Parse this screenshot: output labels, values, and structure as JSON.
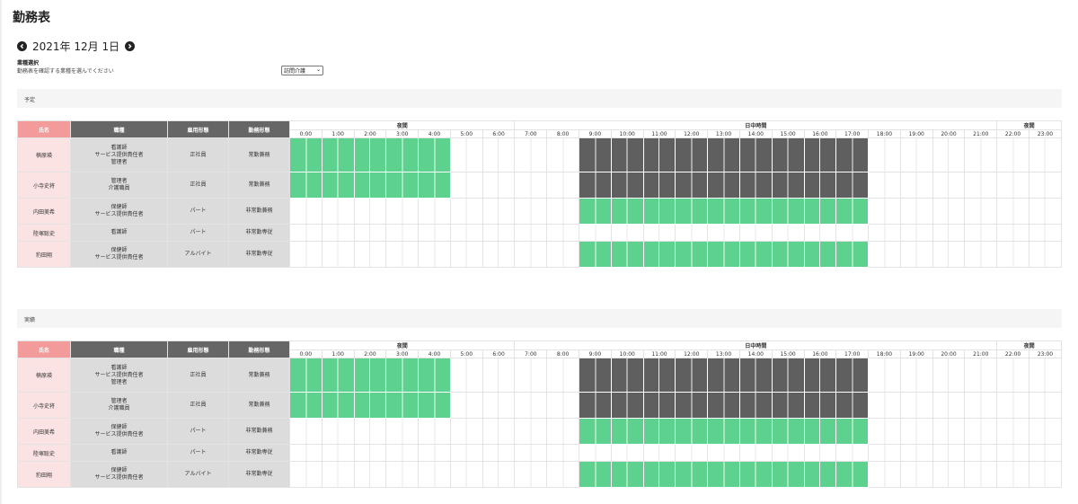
{
  "page": {
    "title": "勤務表"
  },
  "date_nav": {
    "date": "2021年 12月 1日",
    "prev_icon": "chevron-left-circle-icon",
    "next_icon": "chevron-right-circle-icon"
  },
  "job_select": {
    "title": "業種選択",
    "description": "勤務表を確認する業種を選んでください",
    "selected": "訪問介護"
  },
  "colors": {
    "name_header": "#f39a9a",
    "name_cell": "#fbe3e3",
    "dark_header": "#666666",
    "info_cell": "#dcdcdc",
    "scheduled_green": "#5dd28e",
    "scheduled_dark": "#5f5f5f"
  },
  "table_headers": {
    "name": "氏名",
    "job": "職種",
    "employment": "雇用形態",
    "work_style": "勤務形態"
  },
  "time_groups": [
    {
      "label": "夜間",
      "span": 7
    },
    {
      "label": "日中時間",
      "span": 15
    },
    {
      "label": "夜間",
      "span": 2
    }
  ],
  "hours": [
    "0:00",
    "1:00",
    "2:00",
    "3:00",
    "4:00",
    "5:00",
    "6:00",
    "7:00",
    "8:00",
    "9:00",
    "10:00",
    "11:00",
    "12:00",
    "13:00",
    "14:00",
    "15:00",
    "16:00",
    "17:00",
    "18:00",
    "19:00",
    "20:00",
    "21:00",
    "22:00",
    "23:00"
  ],
  "sections": [
    {
      "label": "予定",
      "staff": [
        {
          "name": "楠原瑛",
          "job_lines": [
            "看護師",
            "サービス提供責任者",
            "管理者"
          ],
          "employment": "正社員",
          "work_style": "常勤兼務",
          "shifts": [
            {
              "from": 0,
              "to": 5,
              "type": "g"
            },
            {
              "from": 9,
              "to": 18,
              "type": "d"
            }
          ]
        },
        {
          "name": "小寺史将",
          "job_lines": [
            "管理者",
            "介護職員"
          ],
          "employment": "正社員",
          "work_style": "常勤兼務",
          "shifts": [
            {
              "from": 0,
              "to": 5,
              "type": "g"
            },
            {
              "from": 9,
              "to": 18,
              "type": "d"
            }
          ]
        },
        {
          "name": "内田美希",
          "job_lines": [
            "保健師",
            "サービス提供責任者"
          ],
          "employment": "パート",
          "work_style": "非常勤兼務",
          "shifts": [
            {
              "from": 9,
              "to": 18,
              "type": "g"
            }
          ]
        },
        {
          "name": "陸塚聡史",
          "job_lines": [
            "看護師"
          ],
          "employment": "パート",
          "work_style": "非常勤専従",
          "shifts": []
        },
        {
          "name": "豹田翔",
          "job_lines": [
            "保健師",
            "サービス提供責任者"
          ],
          "employment": "アルバイト",
          "work_style": "非常勤専従",
          "shifts": [
            {
              "from": 9,
              "to": 18,
              "type": "g"
            }
          ]
        }
      ]
    },
    {
      "label": "実績",
      "staff": [
        {
          "name": "楠原瑛",
          "job_lines": [
            "看護師",
            "サービス提供責任者",
            "管理者"
          ],
          "employment": "正社員",
          "work_style": "常勤兼務",
          "shifts": [
            {
              "from": 0,
              "to": 5,
              "type": "g"
            },
            {
              "from": 9,
              "to": 18,
              "type": "d"
            }
          ]
        },
        {
          "name": "小寺史将",
          "job_lines": [
            "管理者",
            "介護職員"
          ],
          "employment": "正社員",
          "work_style": "常勤兼務",
          "shifts": [
            {
              "from": 0,
              "to": 5,
              "type": "g"
            },
            {
              "from": 9,
              "to": 18,
              "type": "d"
            }
          ]
        },
        {
          "name": "内田美希",
          "job_lines": [
            "保健師",
            "サービス提供責任者"
          ],
          "employment": "パート",
          "work_style": "非常勤兼務",
          "shifts": [
            {
              "from": 9,
              "to": 18,
              "type": "g"
            }
          ]
        },
        {
          "name": "陸塚聡史",
          "job_lines": [
            "看護師"
          ],
          "employment": "パート",
          "work_style": "非常勤専従",
          "shifts": []
        },
        {
          "name": "豹田翔",
          "job_lines": [
            "保健師",
            "サービス提供責任者"
          ],
          "employment": "アルバイト",
          "work_style": "非常勤専従",
          "shifts": [
            {
              "from": 9,
              "to": 18,
              "type": "g"
            }
          ]
        }
      ]
    }
  ]
}
